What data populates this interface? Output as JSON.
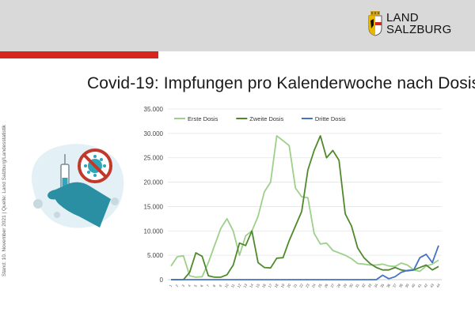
{
  "header": {
    "logo_text_line1": "LAND",
    "logo_text_line2": "SALZBURG",
    "accent_color": "#d7261e"
  },
  "page_title": "Covid-19: Impfungen pro Kalenderwoche nach Dosis",
  "side_note": "Stand: 10. November 2021 | Quelle: Land Salzburg/Landesstatistik",
  "illustration": {
    "icons": [
      "syringe-icon",
      "virus-icon",
      "prohibition-icon",
      "hand-icon"
    ]
  },
  "chart_data": {
    "type": "line",
    "title": "",
    "xlabel": "",
    "ylabel": "",
    "ylim": [
      0,
      35000
    ],
    "y_ticks": [
      "0",
      "5.000",
      "10.000",
      "15.000",
      "20.000",
      "25.000",
      "30.000",
      "35.000"
    ],
    "grid": true,
    "legend_position": "top-left",
    "x": [
      1,
      2,
      3,
      4,
      5,
      6,
      7,
      8,
      9,
      10,
      11,
      12,
      13,
      14,
      15,
      16,
      17,
      18,
      19,
      20,
      21,
      22,
      23,
      24,
      25,
      26,
      27,
      28,
      29,
      30,
      31,
      32,
      33,
      34,
      35,
      36,
      37,
      38,
      39,
      40,
      41,
      42,
      43,
      44
    ],
    "series": [
      {
        "name": "Erste Dosis",
        "color": "#9dd08a",
        "values": [
          2800,
          4700,
          4900,
          800,
          500,
          600,
          3500,
          7000,
          10500,
          12500,
          10000,
          5000,
          9000,
          10000,
          13000,
          18000,
          20000,
          29500,
          28500,
          27500,
          18800,
          17000,
          16800,
          9500,
          7300,
          7500,
          6000,
          5500,
          5000,
          4300,
          3300,
          3200,
          3000,
          3000,
          3200,
          2800,
          2700,
          3400,
          3000,
          2000,
          1700,
          2800,
          3200,
          4000
        ]
      },
      {
        "name": "Zweite Dosis",
        "color": "#4e8a2c",
        "values": [
          0,
          0,
          0,
          1500,
          5500,
          4800,
          800,
          500,
          500,
          1000,
          3000,
          7500,
          7000,
          10000,
          3500,
          2500,
          2400,
          4400,
          4500,
          8000,
          11000,
          14000,
          22500,
          26500,
          29500,
          25000,
          26500,
          24500,
          13500,
          11000,
          6500,
          4500,
          3300,
          2500,
          2000,
          2000,
          2500,
          2000,
          1800,
          2000,
          2500,
          3000,
          2000,
          2700
        ]
      },
      {
        "name": "Dritte Dosis",
        "color": "#4472c4",
        "values": [
          0,
          0,
          0,
          0,
          0,
          0,
          0,
          0,
          0,
          0,
          0,
          0,
          0,
          0,
          0,
          0,
          0,
          0,
          0,
          0,
          0,
          0,
          0,
          0,
          0,
          0,
          0,
          0,
          0,
          0,
          0,
          0,
          0,
          0,
          900,
          200,
          600,
          1500,
          1900,
          2000,
          4500,
          5200,
          3500,
          7000
        ]
      }
    ]
  }
}
